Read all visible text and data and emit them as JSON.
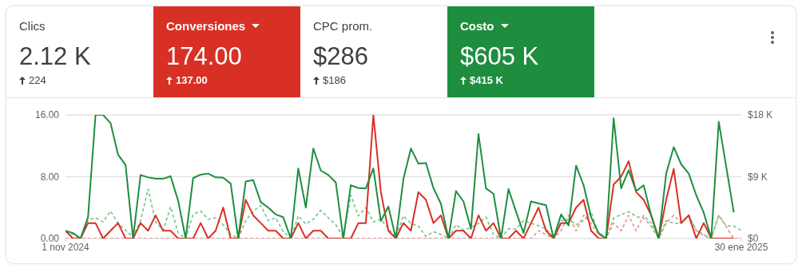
{
  "chart_data": [
    {
      "type": "other",
      "categories": [
        "Clics",
        "Conversiones",
        "CPC prom.",
        "Costo"
      ],
      "value_labels": [
        "2.12 K",
        "174.00",
        "$286",
        "$605 K"
      ],
      "annotations": [
        "224",
        "137.00",
        "$186",
        "$415 K"
      ],
      "colors": [
        null,
        "#d93025",
        null,
        "#1e8e3e"
      ]
    },
    {
      "type": "line",
      "x": [
        "2024-11-01",
        "2024-11-02",
        "2024-11-03",
        "2024-11-04",
        "2024-11-05",
        "2024-11-06",
        "2024-11-07",
        "2024-11-08",
        "2024-11-09",
        "2024-11-10",
        "2024-11-11",
        "2024-11-12",
        "2024-11-13",
        "2024-11-14",
        "2024-11-15",
        "2024-11-16",
        "2024-11-17",
        "2024-11-18",
        "2024-11-19",
        "2024-11-20",
        "2024-11-21",
        "2024-11-22",
        "2024-11-23",
        "2024-11-24",
        "2024-11-25",
        "2024-11-26",
        "2024-11-27",
        "2024-11-28",
        "2024-11-29",
        "2024-11-30",
        "2024-12-01",
        "2024-12-02",
        "2024-12-03",
        "2024-12-04",
        "2024-12-05",
        "2024-12-06",
        "2024-12-07",
        "2024-12-08",
        "2024-12-09",
        "2024-12-10",
        "2024-12-11",
        "2024-12-12",
        "2024-12-13",
        "2024-12-14",
        "2024-12-15",
        "2024-12-16",
        "2024-12-17",
        "2024-12-18",
        "2024-12-19",
        "2024-12-20",
        "2024-12-21",
        "2024-12-22",
        "2024-12-23",
        "2024-12-24",
        "2024-12-25",
        "2024-12-26",
        "2024-12-27",
        "2024-12-28",
        "2024-12-29",
        "2024-12-30",
        "2024-12-31",
        "2025-01-01",
        "2025-01-02",
        "2025-01-03",
        "2025-01-04",
        "2025-01-05",
        "2025-01-06",
        "2025-01-07",
        "2025-01-08",
        "2025-01-09",
        "2025-01-10",
        "2025-01-11",
        "2025-01-12",
        "2025-01-13",
        "2025-01-14",
        "2025-01-15",
        "2025-01-16",
        "2025-01-17",
        "2025-01-18",
        "2025-01-19",
        "2025-01-20",
        "2025-01-21",
        "2025-01-22",
        "2025-01-23",
        "2025-01-24",
        "2025-01-25",
        "2025-01-26",
        "2025-01-27",
        "2025-01-28",
        "2025-01-29",
        "2025-01-30"
      ],
      "xlim": [
        "2024-11-01",
        "2025-01-30"
      ],
      "xticks": [
        {
          "value": "2024-11-01",
          "label": "1 nov 2024"
        },
        {
          "value": "2025-01-30",
          "label": "30 ene 2025"
        }
      ],
      "ylim": [
        0,
        16
      ],
      "yticks": [
        {
          "value": 0,
          "label": "0.00"
        },
        {
          "value": 8,
          "label": "8.00"
        },
        {
          "value": 16,
          "label": "16.00"
        }
      ],
      "y2lim": [
        0,
        18000
      ],
      "y2ticks": [
        {
          "value": 0,
          "label": "$0"
        },
        {
          "value": 9000,
          "label": "$9 K"
        },
        {
          "value": 18000,
          "label": "$18 K"
        }
      ],
      "grid": "y",
      "marker": "none",
      "line_style": "solid",
      "series": [
        {
          "color": "#f09a93",
          "line_style": "dashed",
          "values": [
            0,
            0,
            0,
            0,
            0,
            0,
            0,
            0,
            0,
            0,
            0,
            0,
            0,
            0,
            0,
            0,
            0,
            0,
            0,
            0,
            0,
            0,
            0,
            0,
            0,
            0,
            0,
            0,
            0,
            0,
            0,
            0,
            0,
            0,
            0,
            0,
            0,
            0,
            0,
            0,
            0,
            0,
            0,
            0,
            0,
            0,
            0,
            0,
            0,
            0,
            0,
            0,
            0,
            0,
            0,
            0,
            0,
            0,
            0,
            0,
            0,
            0,
            0,
            1,
            0.5,
            0,
            1,
            3,
            1,
            3,
            2,
            0.5,
            0,
            2,
            1,
            3,
            1,
            3,
            2,
            0,
            2,
            3,
            2,
            3,
            1,
            0.5,
            0,
            3,
            1.5,
            0,
            0
          ]
        },
        {
          "color": "#81c995",
          "line_style": "dashed",
          "axis": "y2",
          "values": [
            1000,
            600,
            0,
            2700,
            3000,
            2400,
            4000,
            2200,
            1200,
            200,
            2600,
            7200,
            2400,
            1200,
            4600,
            800,
            0,
            3500,
            4000,
            2800,
            3000,
            2000,
            600,
            0,
            2600,
            4000,
            4800,
            2600,
            3000,
            1000,
            0,
            3300,
            2100,
            2800,
            4100,
            3000,
            2000,
            200,
            6300,
            3300,
            4500,
            2400,
            2800,
            1400,
            200,
            3300,
            2200,
            1800,
            300,
            1000,
            600,
            0,
            2000,
            1200,
            1600,
            2200,
            3100,
            600,
            0,
            1400,
            1400,
            2600,
            2200,
            1850,
            1400,
            200,
            2600,
            2750,
            2000,
            2600,
            3900,
            600,
            0,
            2950,
            3500,
            3900,
            3200,
            2950,
            1800,
            0,
            2600,
            2200,
            2200,
            3400,
            1200,
            400,
            0,
            3350,
            1850,
            1800,
            1200
          ]
        },
        {
          "color": "#d93025",
          "values": [
            1,
            0,
            0,
            2,
            2,
            0,
            1,
            2,
            0,
            0,
            2,
            1,
            3,
            1,
            1,
            0,
            0,
            0,
            2,
            0,
            1,
            4,
            0,
            0,
            5,
            3,
            2,
            1,
            1,
            0,
            0,
            2,
            0,
            1,
            1,
            0,
            0,
            0,
            0,
            2,
            2,
            16,
            6,
            1,
            0,
            2,
            1,
            6,
            5,
            2,
            3,
            0,
            1,
            1,
            0,
            3,
            1,
            2,
            0,
            0,
            1,
            0,
            2,
            4,
            1,
            0,
            2,
            2,
            4,
            5,
            1,
            0,
            0,
            7,
            8,
            10,
            6,
            5,
            3,
            0,
            5,
            9,
            2,
            3,
            0,
            2,
            0,
            0,
            0,
            0,
            null
          ]
        },
        {
          "color": "#1e8e3e",
          "axis": "y2",
          "values": [
            1100,
            800,
            0,
            3100,
            18000,
            18000,
            16800,
            12200,
            10700,
            0,
            9250,
            8900,
            8700,
            8700,
            9050,
            5500,
            0,
            8800,
            9300,
            9450,
            8900,
            8850,
            8000,
            0,
            8300,
            8500,
            5300,
            4500,
            3500,
            3100,
            0,
            10200,
            4500,
            13100,
            9900,
            9250,
            8150,
            0,
            7750,
            7350,
            7300,
            10200,
            2550,
            4650,
            0,
            8650,
            13100,
            10900,
            11000,
            7350,
            5050,
            0,
            6900,
            5400,
            1400,
            15200,
            7300,
            6500,
            0,
            7200,
            3900,
            800,
            5400,
            5100,
            4850,
            0,
            3500,
            1900,
            10600,
            7750,
            3100,
            800,
            0,
            17500,
            7300,
            9950,
            6900,
            7750,
            3350,
            0,
            9450,
            13300,
            10800,
            9450,
            6300,
            3750,
            0,
            17000,
            10400,
            3800,
            null
          ]
        }
      ]
    }
  ]
}
